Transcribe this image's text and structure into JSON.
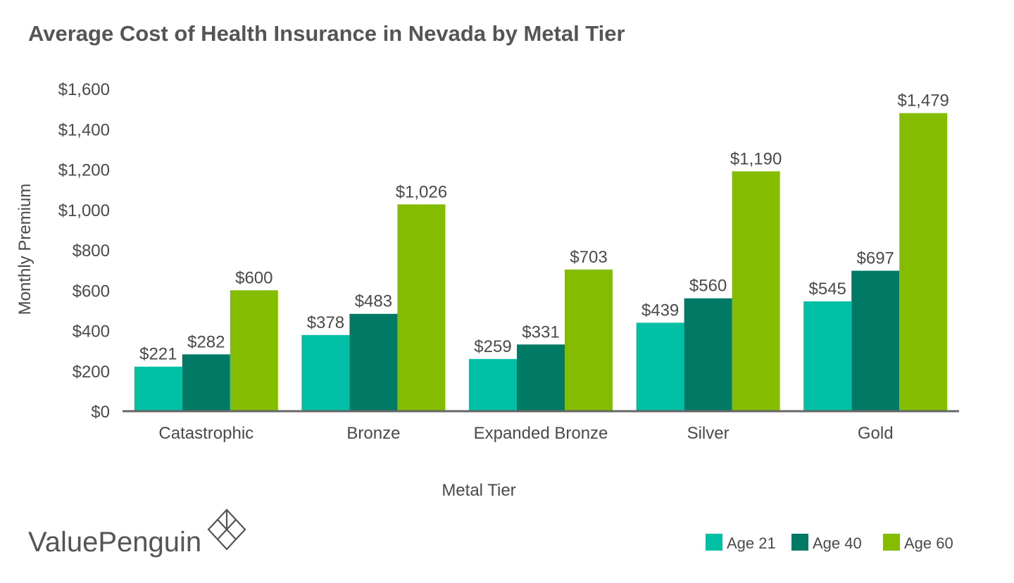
{
  "chart_data": {
    "type": "bar",
    "title": "Average Cost of Health Insurance in Nevada by Metal Tier",
    "xlabel": "Metal Tier",
    "ylabel": "Monthly Premium",
    "ylim": [
      0,
      1600
    ],
    "yticks": [
      0,
      200,
      400,
      600,
      800,
      1000,
      1200,
      1400,
      1600
    ],
    "ytick_labels": [
      "$0",
      "$200",
      "$400",
      "$600",
      "$800",
      "$1,000",
      "$1,200",
      "$1,400",
      "$1,600"
    ],
    "categories": [
      "Catastrophic",
      "Bronze",
      "Expanded Bronze",
      "Silver",
      "Gold"
    ],
    "series": [
      {
        "name": "Age 21",
        "color": "#00bfa5",
        "values": [
          221,
          378,
          259,
          439,
          545
        ],
        "labels": [
          "$221",
          "$378",
          "$259",
          "$439",
          "$545"
        ]
      },
      {
        "name": "Age 40",
        "color": "#007a64",
        "values": [
          282,
          483,
          331,
          560,
          697
        ],
        "labels": [
          "$282",
          "$483",
          "$331",
          "$560",
          "$697"
        ]
      },
      {
        "name": "Age 60",
        "color": "#84bd00",
        "values": [
          600,
          1026,
          703,
          1190,
          1479
        ],
        "labels": [
          "$600",
          "$1,026",
          "$703",
          "$1,190",
          "$1,479"
        ]
      }
    ],
    "grid": false,
    "legend": "bottom-right"
  },
  "brand": {
    "name": "ValuePenguin",
    "icon": "valuepenguin-logo-icon"
  }
}
